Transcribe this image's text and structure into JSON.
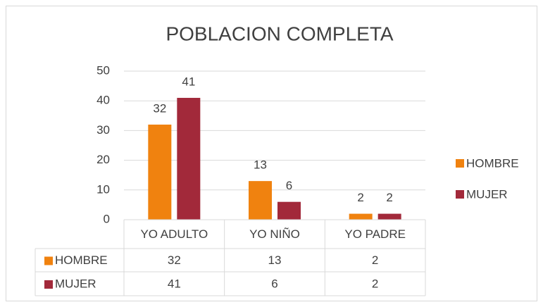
{
  "chart_data": {
    "type": "bar",
    "title": "POBLACION COMPLETA",
    "categories": [
      "YO ADULTO",
      "YO NIÑO",
      "YO PADRE"
    ],
    "series": [
      {
        "name": "HOMBRE",
        "color": "#f0820f",
        "values": [
          32,
          13,
          2
        ]
      },
      {
        "name": "MUJER",
        "color": "#a2293a",
        "values": [
          41,
          6,
          2
        ]
      }
    ],
    "ylim": [
      0,
      50
    ],
    "yticks": [
      0,
      10,
      20,
      30,
      40,
      50
    ],
    "grid": true,
    "legend": "right",
    "data_labels": true,
    "data_table": true
  }
}
